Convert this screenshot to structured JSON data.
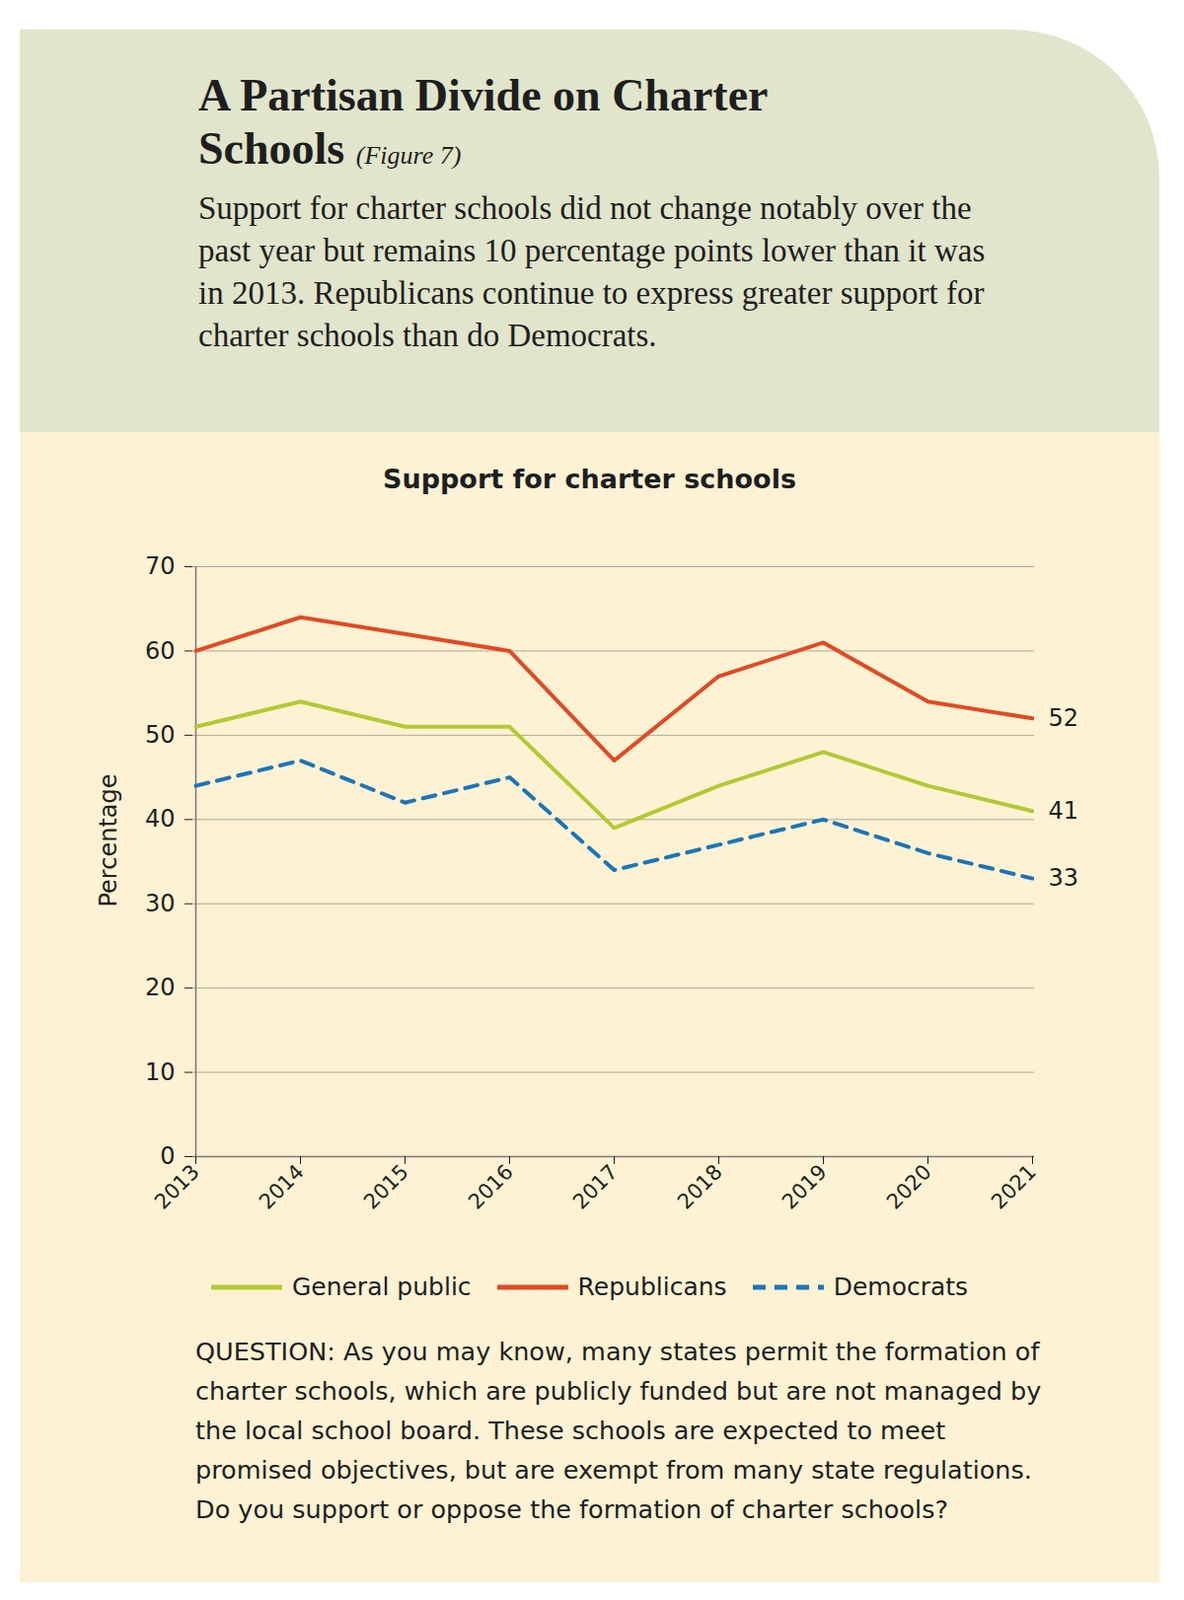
{
  "chart_data": {
    "type": "line",
    "title": "A Partisan Divide on Charter Schools",
    "title_note": "(Figure 7)",
    "subtitle": "Support for charter schools did not change notably over the past year but remains 10 percentage points lower than it was in 2013. Republicans continue to express greater support for charter schools than do Democrats.",
    "chart_title": "Support for charter schools",
    "y_label": "Percentage",
    "note_label": "QUESTION:",
    "note": "As you may know, many states permit the formation of charter schools, which are publicly funded but are not managed by the local school board. These schools are expected to meet promised objectives, but are exempt from many state regulations. Do you support or oppose the formation of charter schools?",
    "categories": [
      "2013",
      "2014",
      "2015",
      "2016",
      "2017",
      "2018",
      "2019",
      "2020",
      "2021"
    ],
    "series": [
      {
        "name": "General public",
        "color": "#b3c934",
        "line_style": "solid",
        "values": [
          51,
          54,
          51,
          51,
          39,
          44,
          48,
          44,
          41
        ],
        "value_labels": [
          null,
          null,
          null,
          null,
          null,
          null,
          null,
          null,
          "41"
        ]
      },
      {
        "name": "Republicans",
        "color": "#e04a25",
        "line_style": "solid",
        "values": [
          60,
          64,
          62,
          60,
          47,
          57,
          61,
          54,
          52
        ],
        "value_labels": [
          null,
          null,
          null,
          null,
          null,
          null,
          null,
          null,
          "52"
        ]
      },
      {
        "name": "Democrats",
        "color": "#1b75b8",
        "line_style": "dashed",
        "values": [
          44,
          47,
          42,
          45,
          34,
          37,
          40,
          36,
          33
        ],
        "value_labels": [
          null,
          null,
          null,
          null,
          null,
          null,
          null,
          null,
          "33"
        ]
      }
    ],
    "ylim": [
      0,
      70
    ],
    "yticks": [
      0,
      10,
      20,
      30,
      40,
      50,
      60,
      70
    ],
    "grid": true,
    "legend": "bottom"
  }
}
